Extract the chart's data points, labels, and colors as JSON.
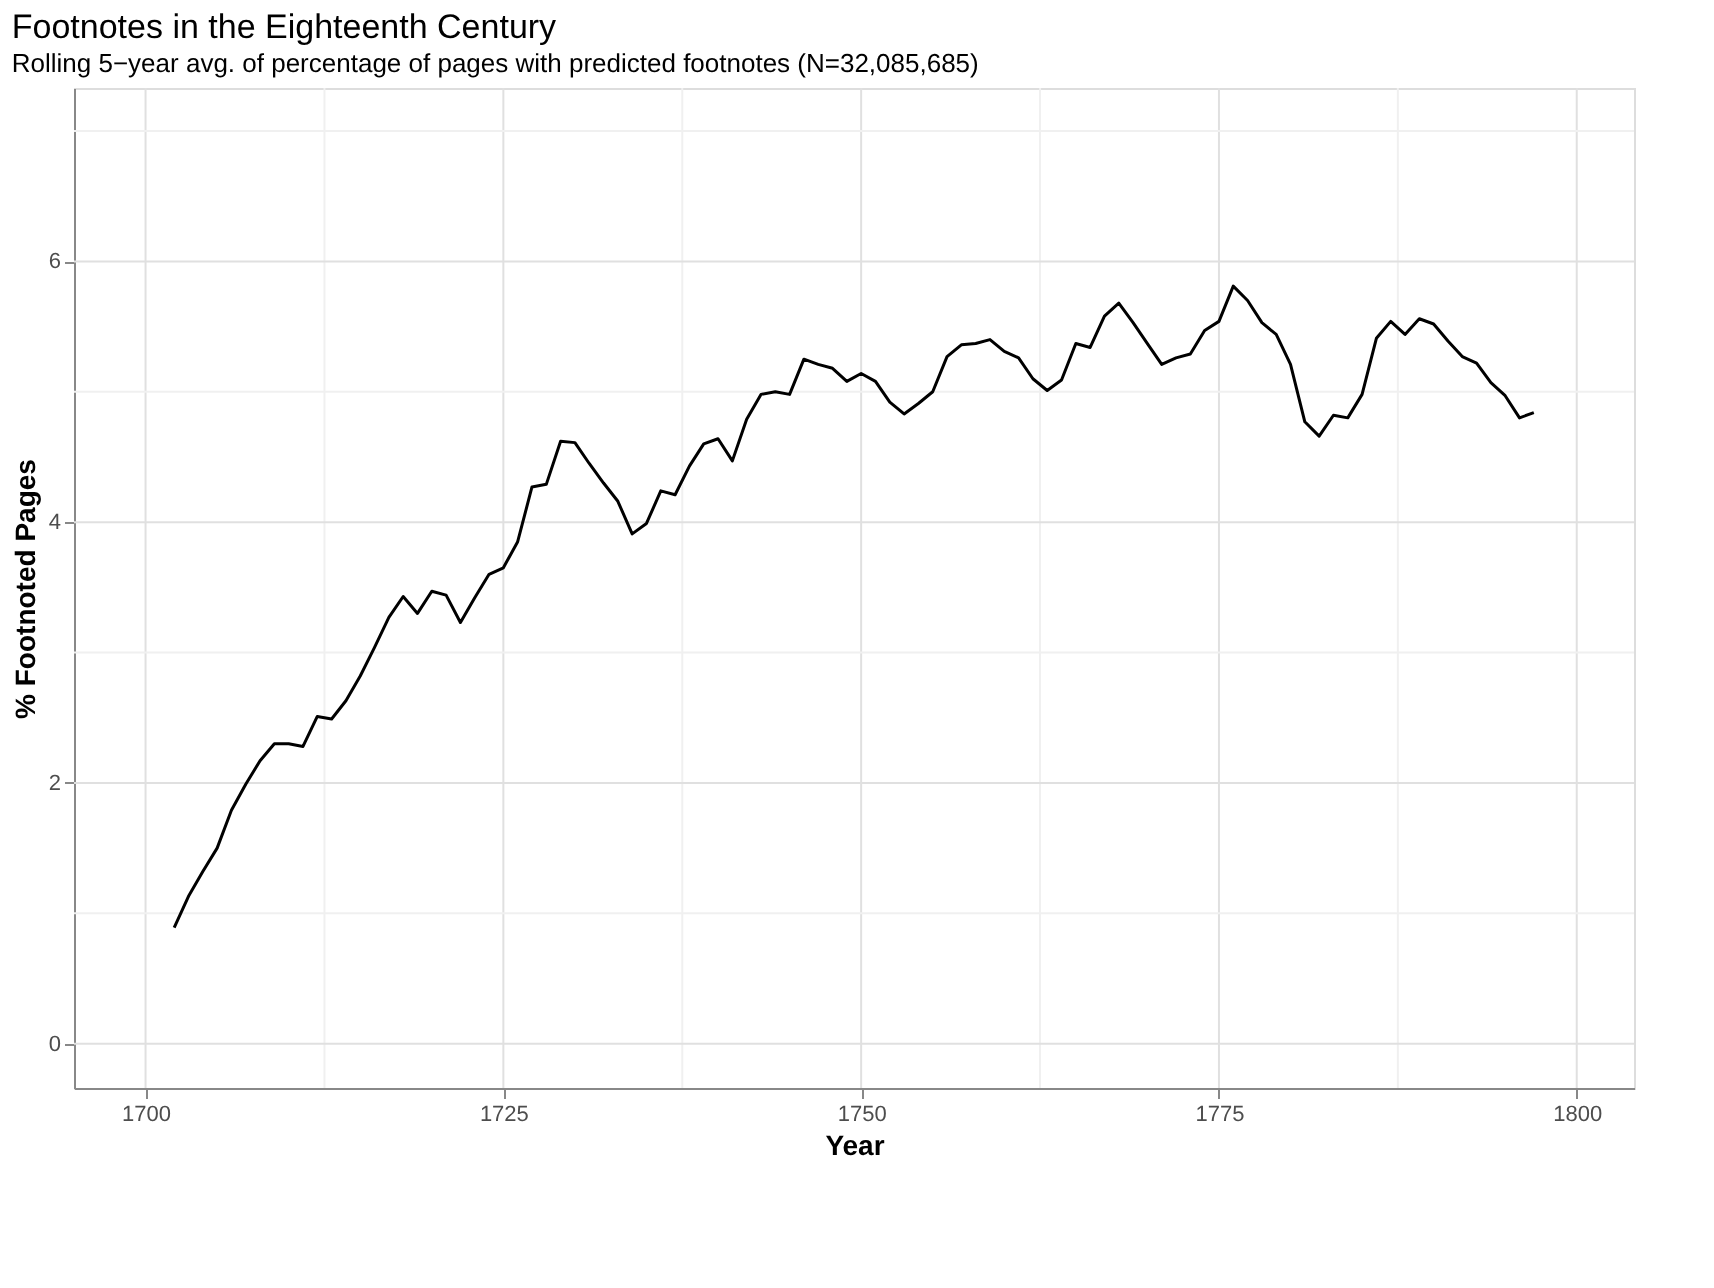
{
  "chart_data": {
    "type": "line",
    "title": "Footnotes in the Eighteenth Century",
    "subtitle": "Rolling 5−year avg. of percentage of pages with predicted footnotes (N=32,085,685)",
    "xlabel": "Year",
    "ylabel": "% Footnoted Pages",
    "x": [
      1702,
      1703,
      1704,
      1705,
      1706,
      1707,
      1708,
      1709,
      1710,
      1711,
      1712,
      1713,
      1714,
      1715,
      1716,
      1717,
      1718,
      1719,
      1720,
      1721,
      1722,
      1723,
      1724,
      1725,
      1726,
      1727,
      1728,
      1729,
      1730,
      1731,
      1732,
      1733,
      1734,
      1735,
      1736,
      1737,
      1738,
      1739,
      1740,
      1741,
      1742,
      1743,
      1744,
      1745,
      1746,
      1747,
      1748,
      1749,
      1750,
      1751,
      1752,
      1753,
      1754,
      1755,
      1756,
      1757,
      1758,
      1759,
      1760,
      1761,
      1762,
      1763,
      1764,
      1765,
      1766,
      1767,
      1768,
      1769,
      1770,
      1771,
      1772,
      1773,
      1774,
      1775,
      1776,
      1777,
      1778,
      1779,
      1780,
      1781,
      1782,
      1783,
      1784,
      1785,
      1786,
      1787,
      1788,
      1789,
      1790,
      1791,
      1792,
      1793,
      1794,
      1795,
      1796,
      1797
    ],
    "series": [
      {
        "color": "#000000",
        "values": [
          0.89,
          1.13,
          1.32,
          1.5,
          1.79,
          1.99,
          2.17,
          2.3,
          2.3,
          2.28,
          2.51,
          2.49,
          2.63,
          2.82,
          3.04,
          3.27,
          3.43,
          3.3,
          3.47,
          3.44,
          3.23,
          3.42,
          3.6,
          3.65,
          3.85,
          4.27,
          4.29,
          4.62,
          4.61,
          4.45,
          4.3,
          4.16,
          3.91,
          3.99,
          4.24,
          4.21,
          4.43,
          4.6,
          4.64,
          4.47,
          4.79,
          4.98,
          5.0,
          4.98,
          5.25,
          5.21,
          5.18,
          5.08,
          5.14,
          5.08,
          4.92,
          4.83,
          4.91,
          5.0,
          5.27,
          5.36,
          5.37,
          5.4,
          5.31,
          5.26,
          5.1,
          5.01,
          5.09,
          5.37,
          5.34,
          5.58,
          5.68,
          5.53,
          5.37,
          5.21,
          5.26,
          5.29,
          5.47,
          5.54,
          5.81,
          5.7,
          5.53,
          5.44,
          5.21,
          4.77,
          4.66,
          4.82,
          4.8,
          4.98,
          5.41,
          5.54,
          5.44,
          5.56,
          5.52,
          5.39,
          5.27,
          5.22,
          5.07,
          4.97,
          4.8,
          4.84
        ]
      }
    ],
    "xlim": [
      1695,
      1804
    ],
    "ylim": [
      -0.34,
      7.33
    ],
    "xticks": [
      1700,
      {
        "value": 1712.5,
        "label": null
      },
      1725,
      {
        "value": 1737.5,
        "label": null
      },
      1750,
      {
        "value": 1762.5,
        "label": null
      },
      1775,
      {
        "value": 1787.5,
        "label": null
      },
      1800
    ],
    "yticks": [
      0,
      {
        "value": 1,
        "label": null
      },
      2,
      {
        "value": 3,
        "label": null
      },
      4,
      {
        "value": 5,
        "label": null
      },
      6,
      {
        "value": 7,
        "label": null
      }
    ],
    "grid": true,
    "line_style": "solid",
    "marker": "none"
  }
}
